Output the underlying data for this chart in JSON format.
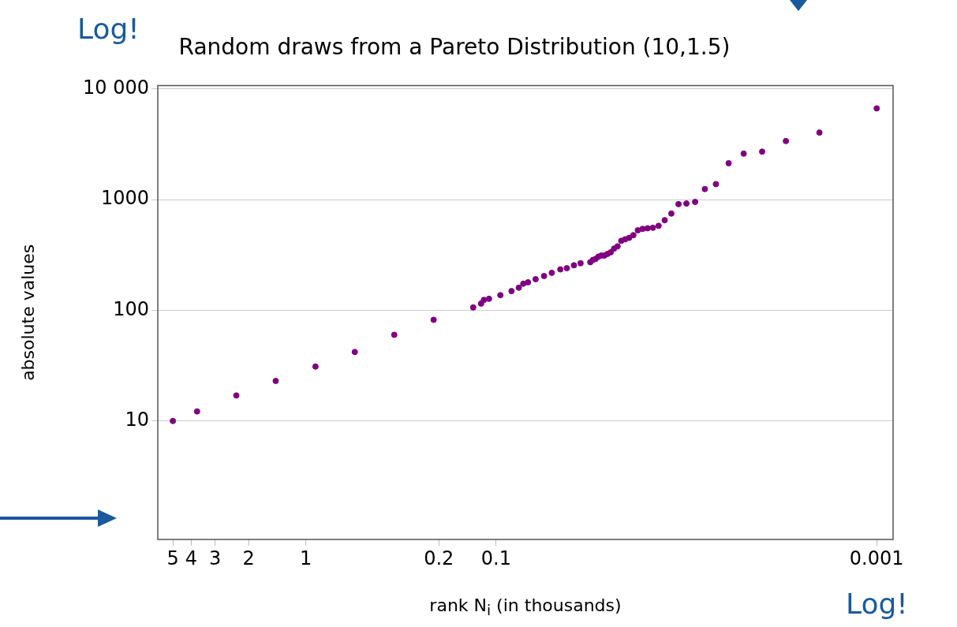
{
  "chart_data": {
    "type": "scatter",
    "title": "Random draws from a Pareto Distribution (10,1.5)",
    "xlabel": "rank N$_{i}$ (in thousands)",
    "ylabel": "absolute values",
    "annotations": [
      "Log!",
      "Log!"
    ],
    "log": "xy",
    "grid": "y",
    "legend": false,
    "marker": "circle",
    "xlim": [
      6,
      0.00082
    ],
    "xticks": [
      5,
      4,
      3,
      2,
      1,
      0.2,
      0.1,
      0.001
    ],
    "ylim": [
      0.85,
      10700
    ],
    "yticks": [
      10,
      100,
      1000,
      {
        "value": 10000,
        "label": "10 000"
      }
    ],
    "series": [
      {
        "color": "#800080",
        "x": [
          5,
          3.73,
          2.32,
          1.44,
          0.89,
          0.553,
          0.343,
          0.213,
          0.132,
          0.12,
          0.116,
          0.109,
          0.095,
          0.083,
          0.076,
          0.072,
          0.068,
          0.062,
          0.056,
          0.051,
          0.046,
          0.0425,
          0.039,
          0.036,
          0.032,
          0.031,
          0.03,
          0.029,
          0.028,
          0.027,
          0.026,
          0.025,
          0.024,
          0.023,
          0.022,
          0.021,
          0.02,
          0.019,
          0.018,
          0.017,
          0.016,
          0.015,
          0.014,
          0.013,
          0.012,
          0.011,
          0.01,
          0.009,
          0.008,
          0.007,
          0.006,
          0.005,
          0.004,
          0.003,
          0.002,
          0.001
        ],
        "values": [
          10,
          12.2,
          17,
          23,
          31,
          42,
          60,
          82,
          106,
          115,
          124,
          127,
          137,
          149,
          160,
          174,
          179,
          191,
          204,
          218,
          234,
          240,
          255,
          266,
          272,
          285,
          291,
          305,
          312,
          312,
          323,
          334,
          361,
          378,
          424,
          438,
          451,
          477,
          528,
          544,
          551,
          556,
          579,
          652,
          748,
          910,
          921,
          953,
          1245,
          1380,
          2130,
          2600,
          2710,
          3380,
          4030,
          6670
        ]
      }
    ]
  }
}
